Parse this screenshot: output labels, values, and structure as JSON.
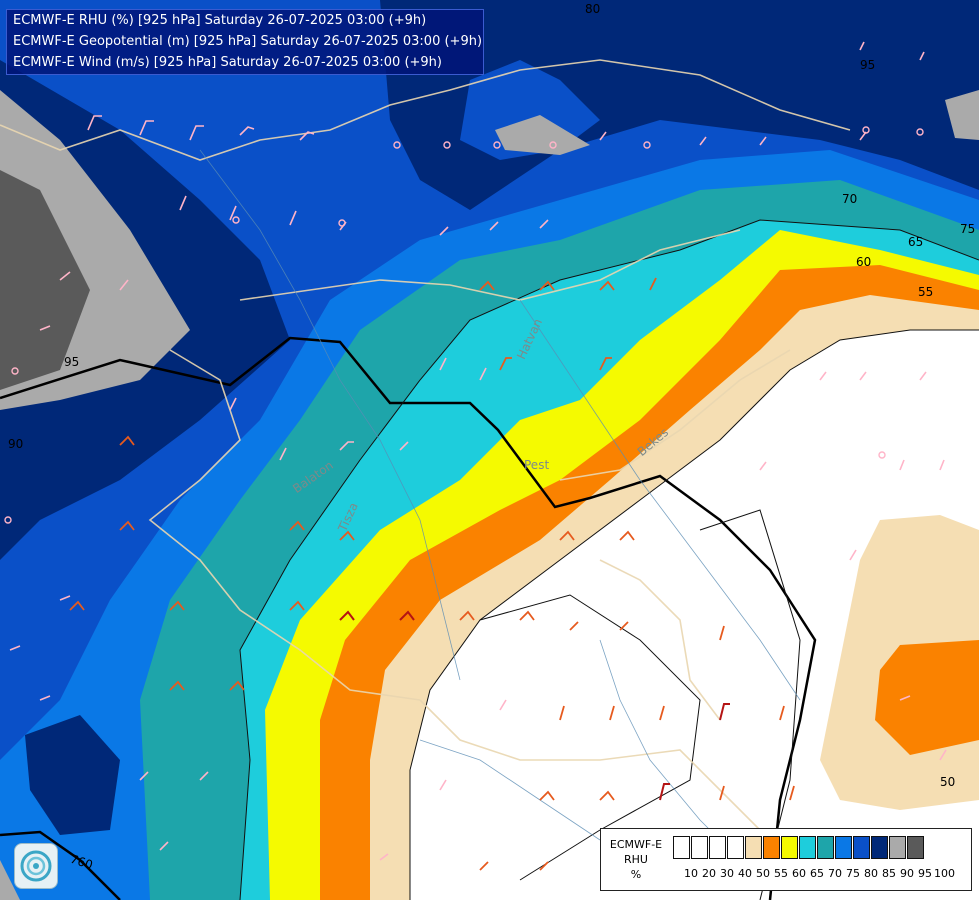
{
  "header": {
    "lines": [
      "ECMWF-E RHU (%) [925 hPa] Saturday 26-07-2025 03:00 (+9h)",
      "ECMWF-E Geopotential (m) [925 hPa] Saturday 26-07-2025 03:00 (+9h)",
      "ECMWF-E Wind (m/s) [925 hPa] Saturday 26-07-2025 03:00 (+9h)"
    ]
  },
  "legend": {
    "title_lines": [
      "ECMWF-E",
      "RHU",
      "%"
    ],
    "tick_labels": [
      "10",
      "20",
      "30",
      "40",
      "50",
      "55",
      "60",
      "65",
      "70",
      "75",
      "80",
      "85",
      "90",
      "95",
      "100"
    ],
    "colors": [
      "#ffffff",
      "#ffffff",
      "#ffffff",
      "#ffffff",
      "#f5deb3",
      "#fa8200",
      "#f5fa00",
      "#1ecddc",
      "#1ea5aa",
      "#0a78e6",
      "#0a50c8",
      "#002878",
      "#aaaaaa",
      "#5a5a5a"
    ]
  },
  "contour_labels": {
    "rh": [
      "80",
      "75",
      "70",
      "65",
      "60",
      "55",
      "50",
      "95",
      "90",
      "95"
    ],
    "geopotential": [
      "760"
    ]
  },
  "places": [
    "Hatvan",
    "Pest",
    "Bekes",
    "Tisza",
    "Balaton"
  ],
  "colors": {
    "rh_95": "#aaaaaa",
    "rh_100": "#5a5a5a",
    "rh_90": "#002878",
    "rh_85": "#0a50c8",
    "rh_80": "#0a78e6",
    "rh_75": "#1ea5aa",
    "rh_70": "#1ecddc",
    "rh_65": "#f5fa00",
    "rh_60": "#fa8200",
    "rh_55": "#f5deb3",
    "wind_low": "#ffb4c8",
    "wind_mid": "#e65a1e",
    "wind_high": "#b41414"
  },
  "icons": [
    "ecmwf-logo-icon"
  ]
}
